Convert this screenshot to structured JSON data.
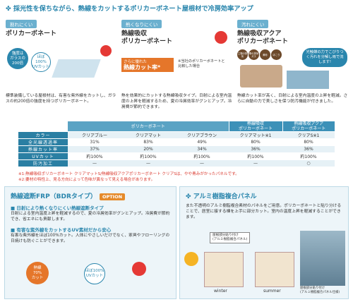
{
  "header": {
    "title": "採光性を保ちながら、熱線をカットするポリカーボネート屋根材で冷房効率アップ"
  },
  "features": [
    {
      "tag": "割れにくい",
      "title_lines": [
        "ポリカーボネート"
      ],
      "badges": [
        [
          "強度は",
          "ガラスの",
          "200倍"
        ],
        [
          "ほぼ100%",
          "UVカット"
        ]
      ],
      "description": "標準装備している屋根材は、有害な紫外線をカットし、ガラスの約200倍の強度を持つポリカーボネート。"
    },
    {
      "tag": "熱くなりにくい",
      "title_lines": [
        "熱線吸収",
        "ポリカーボネート"
      ],
      "highlight": [
        "さらに優れた",
        "熱線カット率*"
      ],
      "note": "※当社のポリカーボネートと比較した場合",
      "description": "熱を効果的にカットする熱線吸収タイプ。日射による室内温度の上昇を軽減するため、夏の冷房効率がグンとアップ。冷房費が節約できます。"
    },
    {
      "tag": "汚れにくい",
      "title_lines": [
        "熱線吸収アクア",
        "ポリカーボネート"
      ],
      "icons": [
        "工場の排気",
        "車の排気ガス",
        "黄砂",
        "ほこり"
      ],
      "bubble": "光触媒の力でこびりつく汚れを分解し雨で流します!",
      "description": "熱線カット率が高く、日射による室内温度の上昇を軽減。さらに自動の力で美しさを保つ防汚機能が付きました。"
    }
  ],
  "table": {
    "group_headers": [
      [
        "ポリカーボネート"
      ],
      [
        "熱線吸収",
        "ポリカーボネート"
      ],
      [
        "熱線吸収アクア",
        "ポリカーボネート"
      ]
    ],
    "rows": [
      [
        "カラー",
        "クリアブルー",
        "クリアマット",
        "クリアブラウン",
        "クリアマット※1",
        "クリアS※1"
      ],
      [
        "全光線透過率",
        "31%",
        "83%",
        "49%",
        "80%",
        "80%"
      ],
      [
        "熱線カット率",
        "37%",
        "20%",
        "34%",
        "36%",
        "36%"
      ],
      [
        "UVカット",
        "約100%",
        "約100%",
        "約100%",
        "約100%",
        "約100%"
      ],
      [
        "防汚加工",
        "—",
        "—",
        "—",
        "—",
        "○"
      ]
    ]
  },
  "notes": [
    "※1:熱線吸収ポリカーボネート クリアマットS/熱線吸収アクアポリカーボネート クリアSは、やや青みがかったパネルです。",
    "※2:要材の特性上、見る方向によって色味が異なって見える場合があります。"
  ],
  "frp": {
    "title": "熱線遮断FRP（BDRタイプ）",
    "option": "OPTION",
    "sections": [
      {
        "heading": "日射により熱くなりにくい熱線遮断タイプ",
        "text": "日射による室内温度上昇を軽減するので、夏の冷房効率がグンとアップ。冷房費が節約でき、省エネにも貢献します。"
      },
      {
        "heading": "有害な紫外線をカットするUV素材だから安心",
        "text": "有害な紫外線をほぼ100%カット。人体にやさしいだけでなく、家具やフローリングの日焼けも防ぐことができます。"
      }
    ],
    "badges": [
      [
        "熱線",
        "70%",
        "カット"
      ],
      [
        "ほぼ100%",
        "UVカット"
      ]
    ]
  },
  "aluminum": {
    "title": "アルミ樹脂複合パネル",
    "text": "また不透明のアルミ樹脂複合素材のパネルをご用意。ポリカーボネートと貼り分けることで、居室に接する棟を上手に部分カット。室内の温度上昇を軽減することができます。",
    "label_top": [
      "屋根部分貼り付け",
      "(アルミ樹脂複合パネル)"
    ],
    "winter": "winter",
    "summer": "summer",
    "label_bottom": [
      "屋根部分貼り付け",
      "(アルミ樹脂複合パネル仕様)"
    ]
  }
}
